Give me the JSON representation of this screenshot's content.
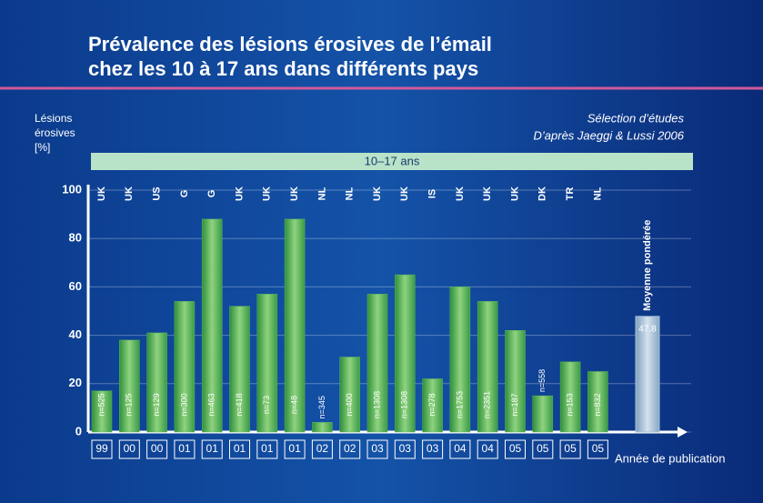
{
  "chart_data": {
    "type": "bar",
    "title_lines": [
      "Prévalence des lésions érosives de l’émail",
      "chez les 10 à 17 ans dans différents pays"
    ],
    "y_label_lines": [
      "Lésions",
      "érosives",
      "[%]"
    ],
    "source_lines": [
      "Sélection d’études",
      "D’après  Jaeggi & Lussi 2006"
    ],
    "band_label": "10–17 ans",
    "x_label": "Année de publication",
    "categories": [
      "UK",
      "UK",
      "US",
      "G",
      "G",
      "UK",
      "UK",
      "UK",
      "NL",
      "NL",
      "UK",
      "UK",
      "IS",
      "UK",
      "UK",
      "UK",
      "DK",
      "TR",
      "NL"
    ],
    "years": [
      "99",
      "00",
      "00",
      "01",
      "01",
      "01",
      "01",
      "01",
      "02",
      "02",
      "03",
      "03",
      "03",
      "04",
      "04",
      "05",
      "05",
      "05",
      "05"
    ],
    "values": [
      17,
      38,
      41,
      54,
      88,
      52,
      57,
      88,
      4,
      31,
      57,
      65,
      22,
      60,
      54,
      42,
      15,
      29,
      25
    ],
    "n_labels": [
      "n=525",
      "n=125",
      "n=129",
      "n=300",
      "n=463",
      "n=418",
      "n=73",
      "n=48",
      "n=345",
      "n=400",
      "n=1308",
      "n=1308",
      "n=278",
      "n=1753",
      "n=2351",
      "n=187",
      "n=558",
      "n=153",
      "n=832"
    ],
    "color": "#5cb85c",
    "mean": {
      "label": "Moyenne pondérée",
      "value": 47.8,
      "color": "#a8c4dc"
    },
    "ylim": [
      0,
      100
    ],
    "yticks": [
      0,
      20,
      40,
      60,
      80,
      100
    ],
    "grid": true
  }
}
